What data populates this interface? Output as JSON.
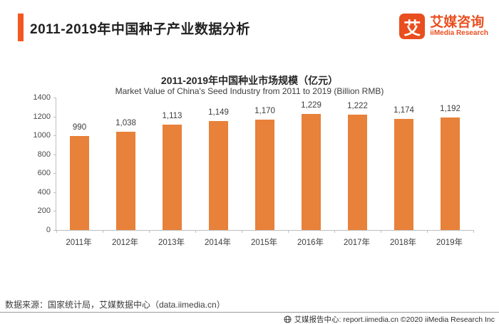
{
  "header": {
    "title": "2011-2019年中国种子产业数据分析"
  },
  "logo": {
    "mark_glyph": "艾",
    "name_cn": "艾媒咨询",
    "name_en": "iiMedia Research"
  },
  "chart_data": {
    "type": "bar",
    "title": "2011-2019年中国种业市场规模（亿元）",
    "subtitle": "Market Value of China's Seed Industry from 2011 to 2019 (Billion RMB)",
    "categories": [
      "2011年",
      "2012年",
      "2013年",
      "2014年",
      "2015年",
      "2016年",
      "2017年",
      "2018年",
      "2019年"
    ],
    "values": [
      990,
      1038,
      1113,
      1149,
      1170,
      1229,
      1222,
      1174,
      1192
    ],
    "value_labels": [
      "990",
      "1,038",
      "1,113",
      "1,149",
      "1,170",
      "1,229",
      "1,222",
      "1,174",
      "1,192"
    ],
    "xlabel": "",
    "ylabel": "",
    "ylim": [
      0,
      1400
    ],
    "ytick_step": 200,
    "grid": false,
    "legend": "none",
    "bar_color": "#E8813A"
  },
  "footer": {
    "source": "数据来源：国家统计局，艾媒数据中心（data.iimedia.cn）",
    "report_center": "艾媒报告中心: report.iimedia.cn  ©2020  iiMedia Research Inc"
  },
  "colors": {
    "accent_bar": "#F4581F",
    "brand_orange": "#E94E1F",
    "bar_fill": "#E8813A",
    "axis_line": "#BFBFBF"
  }
}
